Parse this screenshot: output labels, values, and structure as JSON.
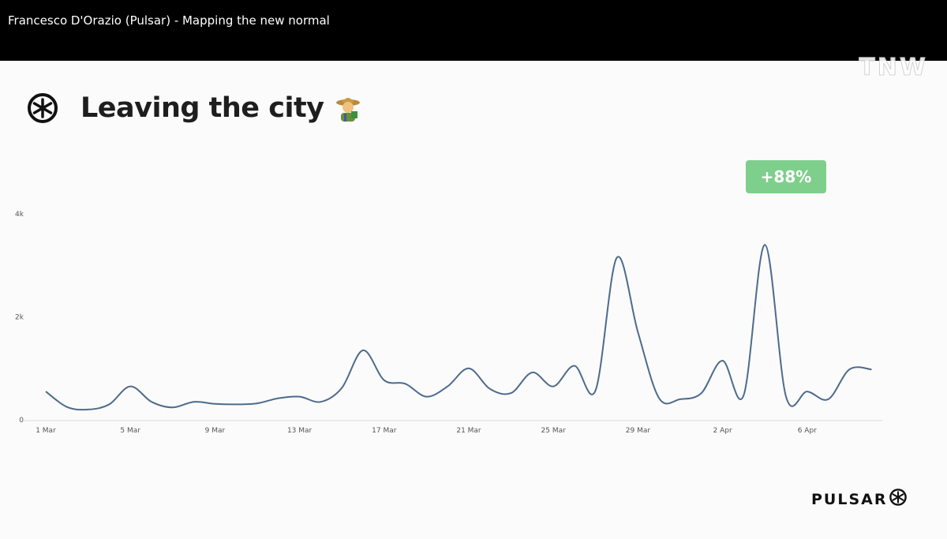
{
  "window": {
    "title": "Francesco D'Orazio (Pulsar) - Mapping the new normal"
  },
  "overlay_logo": {
    "text": "TNW"
  },
  "slide": {
    "title": "Leaving the city",
    "badge": "+88%",
    "brand": "PULSAR"
  },
  "icons": {
    "title_logo": "pulsar-logo-icon",
    "title_emoji": "farmer-emoji-icon",
    "brand_logo": "pulsar-logo-icon"
  },
  "colors": {
    "line": "#4d6b8c",
    "badge": "#7fcf8c",
    "top_bar": "#000000",
    "title": "#1e1e1e"
  },
  "chart_data": {
    "type": "line",
    "title": "",
    "xlabel": "",
    "ylabel": "",
    "x": [
      "1 Mar",
      "2 Mar",
      "3 Mar",
      "4 Mar",
      "5 Mar",
      "6 Mar",
      "7 Mar",
      "8 Mar",
      "9 Mar",
      "10 Mar",
      "11 Mar",
      "12 Mar",
      "13 Mar",
      "14 Mar",
      "15 Mar",
      "16 Mar",
      "17 Mar",
      "18 Mar",
      "19 Mar",
      "20 Mar",
      "21 Mar",
      "22 Mar",
      "23 Mar",
      "24 Mar",
      "25 Mar",
      "26 Mar",
      "27 Mar",
      "28 Mar",
      "29 Mar",
      "30 Mar",
      "31 Mar",
      "1 Apr",
      "2 Apr",
      "3 Apr",
      "4 Apr",
      "5 Apr",
      "6 Apr",
      "7 Apr",
      "8 Apr"
    ],
    "values": [
      550,
      250,
      200,
      300,
      650,
      350,
      240,
      350,
      310,
      300,
      320,
      420,
      450,
      350,
      620,
      1350,
      770,
      700,
      450,
      650,
      1000,
      600,
      520,
      920,
      650,
      1050,
      580,
      3150,
      1700,
      420,
      400,
      520,
      1150,
      480,
      3400,
      450,
      550,
      400,
      980
    ],
    "last_value": 980,
    "x_ticks": [
      "1 Mar",
      "5 Mar",
      "9 Mar",
      "13 Mar",
      "17 Mar",
      "21 Mar",
      "25 Mar",
      "29 Mar",
      "2 Apr",
      "6 Apr"
    ],
    "y_ticks": [
      {
        "value": 0,
        "label": "0"
      },
      {
        "value": 2000,
        "label": "2k"
      },
      {
        "value": 4000,
        "label": "4k"
      }
    ],
    "ylim": [
      0,
      4000
    ],
    "grid": false,
    "legend": "none",
    "annotation": "+88%"
  }
}
